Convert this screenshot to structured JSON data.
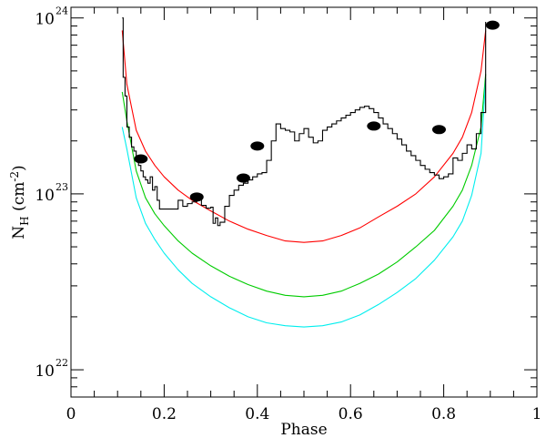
{
  "chart_data": {
    "type": "line",
    "title": "",
    "xlabel": "Phase",
    "ylabel": {
      "main": "N",
      "sub": "H",
      "unit": "(cm",
      "unit_exp": "-2",
      "unit_close": ")"
    },
    "xlim": [
      0,
      1
    ],
    "ylim": [
      7e+21,
      1.15e+24
    ],
    "yscale": "log",
    "x_ticks": [
      0,
      0.2,
      0.4,
      0.6,
      0.8,
      1
    ],
    "x_tick_labels": [
      "0",
      "0.2",
      "0.4",
      "0.6",
      "0.8",
      "1"
    ],
    "y_major_ticks": [
      {
        "value": 1e+22,
        "base": "10",
        "exp": "22"
      },
      {
        "value": 1e+23,
        "base": "10",
        "exp": "23"
      },
      {
        "value": 1e+24,
        "base": "10",
        "exp": "24"
      }
    ],
    "grid": false,
    "legend": "none",
    "series": [
      {
        "kind": "model",
        "color": "#ff0000",
        "x": [
          0.11,
          0.12,
          0.14,
          0.16,
          0.18,
          0.2,
          0.23,
          0.26,
          0.3,
          0.34,
          0.38,
          0.42,
          0.46,
          0.5,
          0.54,
          0.58,
          0.62,
          0.66,
          0.7,
          0.74,
          0.78,
          0.82,
          0.84,
          0.86,
          0.88,
          0.89
        ],
        "y": [
          8.5e+23,
          4.2e+23,
          2.3e+23,
          1.75e+23,
          1.45e+23,
          1.25e+23,
          1.05e+23,
          9.2e+22,
          8e+22,
          7e+22,
          6.3e+22,
          5.8e+22,
          5.4e+22,
          5.3e+22,
          5.4e+22,
          5.8e+22,
          6.4e+22,
          7.4e+22,
          8.5e+22,
          1e+23,
          1.25e+23,
          1.7e+23,
          2.1e+23,
          2.9e+23,
          5e+23,
          8.5e+23
        ]
      },
      {
        "kind": "model",
        "color": "#00cc00",
        "x": [
          0.11,
          0.12,
          0.14,
          0.16,
          0.18,
          0.2,
          0.23,
          0.26,
          0.3,
          0.34,
          0.38,
          0.42,
          0.46,
          0.5,
          0.54,
          0.58,
          0.62,
          0.66,
          0.7,
          0.74,
          0.78,
          0.82,
          0.84,
          0.86,
          0.88,
          0.89
        ],
        "y": [
          3.8e+23,
          2.6e+23,
          1.35e+23,
          9.5e+22,
          7.7e+22,
          6.6e+22,
          5.4e+22,
          4.6e+22,
          3.9e+22,
          3.4e+22,
          3.05e+22,
          2.8e+22,
          2.65e+22,
          2.6e+22,
          2.65e+22,
          2.8e+22,
          3.1e+22,
          3.5e+22,
          4.1e+22,
          5e+22,
          6.2e+22,
          8.5e+22,
          1.05e+23,
          1.45e+23,
          2.4e+23,
          4.8e+23
        ]
      },
      {
        "kind": "model",
        "color": "#00eeee",
        "x": [
          0.11,
          0.12,
          0.14,
          0.16,
          0.18,
          0.2,
          0.23,
          0.26,
          0.3,
          0.34,
          0.38,
          0.42,
          0.46,
          0.5,
          0.54,
          0.58,
          0.62,
          0.66,
          0.7,
          0.74,
          0.78,
          0.82,
          0.84,
          0.86,
          0.88,
          0.89
        ],
        "y": [
          2.4e+23,
          1.8e+23,
          9.5e+22,
          6.8e+22,
          5.5e+22,
          4.6e+22,
          3.7e+22,
          3.1e+22,
          2.6e+22,
          2.25e+22,
          2e+22,
          1.85e+22,
          1.78e+22,
          1.75e+22,
          1.78e+22,
          1.87e+22,
          2.05e+22,
          2.35e+22,
          2.75e+22,
          3.3e+22,
          4.2e+22,
          5.7e+22,
          7e+22,
          9.8e+22,
          1.7e+23,
          4.5e+23
        ]
      },
      {
        "kind": "observed",
        "color": "#000000",
        "x": [
          0.11,
          0.112,
          0.116,
          0.12,
          0.125,
          0.13,
          0.135,
          0.14,
          0.145,
          0.15,
          0.155,
          0.16,
          0.165,
          0.17,
          0.175,
          0.18,
          0.185,
          0.19,
          0.2,
          0.21,
          0.22,
          0.23,
          0.24,
          0.25,
          0.26,
          0.27,
          0.28,
          0.29,
          0.3,
          0.305,
          0.31,
          0.315,
          0.32,
          0.33,
          0.34,
          0.35,
          0.36,
          0.37,
          0.38,
          0.39,
          0.4,
          0.41,
          0.42,
          0.43,
          0.44,
          0.45,
          0.46,
          0.47,
          0.48,
          0.49,
          0.5,
          0.51,
          0.52,
          0.53,
          0.54,
          0.55,
          0.56,
          0.57,
          0.58,
          0.59,
          0.6,
          0.61,
          0.62,
          0.63,
          0.64,
          0.65,
          0.66,
          0.67,
          0.68,
          0.69,
          0.7,
          0.71,
          0.72,
          0.73,
          0.74,
          0.75,
          0.76,
          0.77,
          0.78,
          0.79,
          0.8,
          0.81,
          0.82,
          0.83,
          0.84,
          0.85,
          0.86,
          0.87,
          0.88,
          0.89
        ],
        "y": [
          1e+24,
          4.6e+23,
          3.6e+23,
          2.4e+23,
          2.1e+23,
          1.85e+23,
          1.75e+23,
          1.55e+23,
          1.45e+23,
          1.35e+23,
          1.25e+23,
          1.2e+23,
          1.15e+23,
          1.25e+23,
          1.05e+23,
          1.1e+23,
          9.2e+22,
          8.2e+22,
          8.2e+22,
          8.2e+22,
          8.2e+22,
          9.2e+22,
          8.5e+22,
          8.8e+22,
          9e+22,
          9.5e+22,
          8.6e+22,
          8.3e+22,
          8.4e+22,
          6.8e+22,
          7.3e+22,
          6.6e+22,
          6.9e+22,
          8.5e+22,
          9.8e+22,
          1.05e+23,
          1.12e+23,
          1.15e+23,
          1.2e+23,
          1.25e+23,
          1.3e+23,
          1.32e+23,
          1.55e+23,
          2e+23,
          2.5e+23,
          2.35e+23,
          2.3e+23,
          2.25e+23,
          2e+23,
          2.2e+23,
          2.35e+23,
          2.1e+23,
          1.95e+23,
          2e+23,
          2.3e+23,
          2.4e+23,
          2.5e+23,
          2.6e+23,
          2.7e+23,
          2.8e+23,
          2.9e+23,
          3e+23,
          3.1e+23,
          3.15e+23,
          3.05e+23,
          2.9e+23,
          2.7e+23,
          2.5e+23,
          2.35e+23,
          2.2e+23,
          2.05e+23,
          1.9e+23,
          1.75e+23,
          1.65e+23,
          1.55e+23,
          1.45e+23,
          1.38e+23,
          1.32e+23,
          1.28e+23,
          1.22e+23,
          1.25e+23,
          1.3e+23,
          1.6e+23,
          1.55e+23,
          1.7e+23,
          1.9e+23,
          1.8e+23,
          2.2e+23,
          2.9e+23,
          9.5e+23
        ]
      },
      {
        "kind": "points",
        "color": "#000000",
        "x": [
          0.15,
          0.27,
          0.37,
          0.4,
          0.65,
          0.79,
          0.905
        ],
        "y": [
          1.58e+23,
          9.6e+22,
          1.23e+23,
          1.87e+23,
          2.43e+23,
          2.32e+23,
          9.1e+23
        ]
      }
    ]
  }
}
